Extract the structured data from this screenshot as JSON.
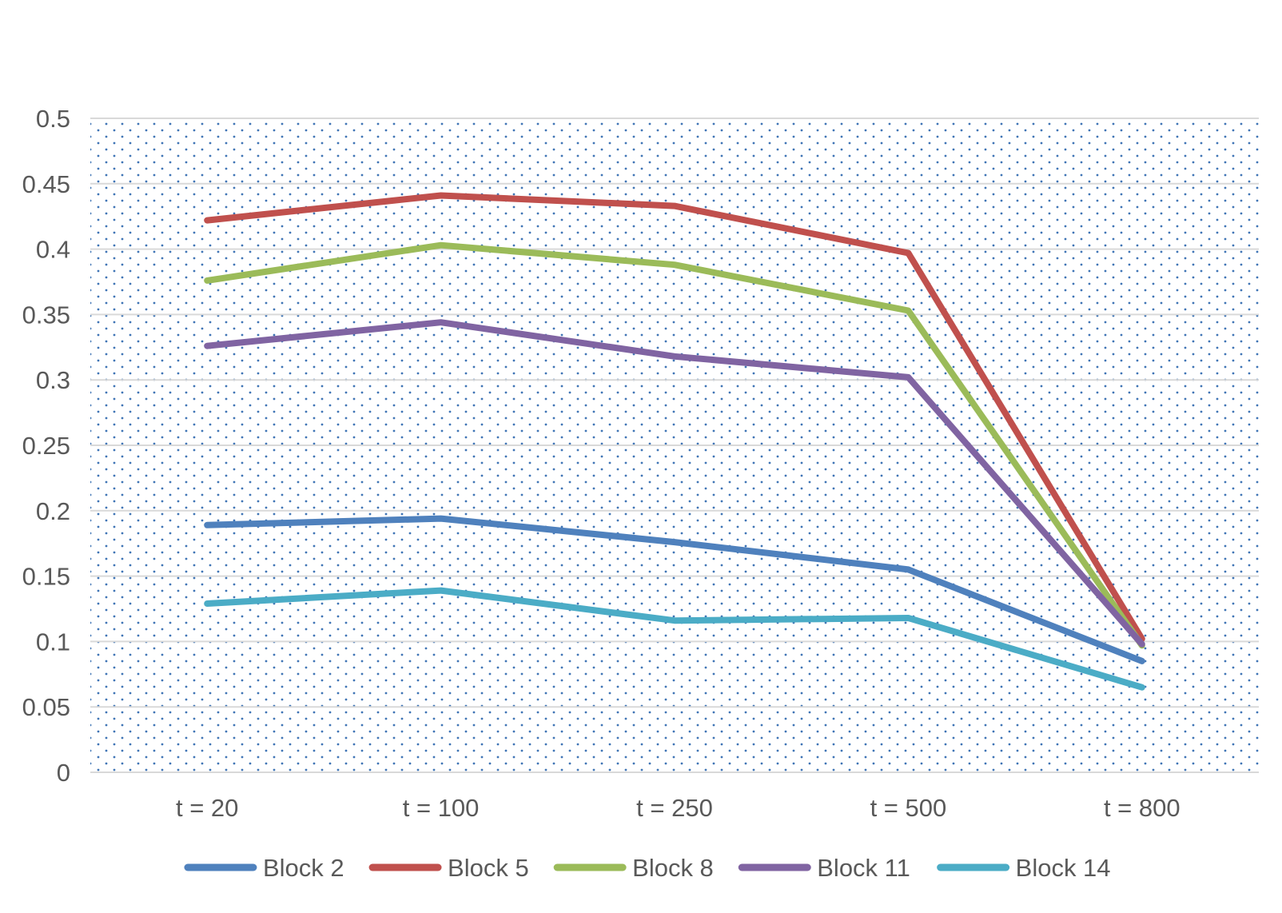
{
  "chart_data": {
    "type": "line",
    "title": "",
    "xlabel": "",
    "ylabel": "",
    "categories": [
      "t = 20",
      "t = 100",
      "t = 250",
      "t = 500",
      "t = 800"
    ],
    "ylim": [
      0,
      0.5
    ],
    "yticks": [
      0,
      0.05,
      0.1,
      0.15,
      0.2,
      0.25,
      0.3,
      0.35,
      0.4,
      0.45,
      0.5
    ],
    "ytick_labels": [
      "0",
      "0.05",
      "0.1",
      "0.15",
      "0.2",
      "0.25",
      "0.3",
      "0.35",
      "0.4",
      "0.45",
      "0.5"
    ],
    "grid": true,
    "legend_position": "bottom",
    "plot_background": "dotted",
    "series": [
      {
        "name": "Block 2",
        "color": "#4f81bd",
        "values": [
          0.189,
          0.194,
          0.176,
          0.155,
          0.085
        ]
      },
      {
        "name": "Block 5",
        "color": "#c0504d",
        "values": [
          0.422,
          0.441,
          0.433,
          0.397,
          0.102
        ]
      },
      {
        "name": "Block 8",
        "color": "#9bbb59",
        "values": [
          0.376,
          0.403,
          0.388,
          0.353,
          0.097
        ]
      },
      {
        "name": "Block 11",
        "color": "#8064a2",
        "values": [
          0.326,
          0.344,
          0.318,
          0.302,
          0.098
        ]
      },
      {
        "name": "Block 14",
        "color": "#4bacc6",
        "values": [
          0.129,
          0.139,
          0.116,
          0.118,
          0.065
        ]
      }
    ]
  }
}
